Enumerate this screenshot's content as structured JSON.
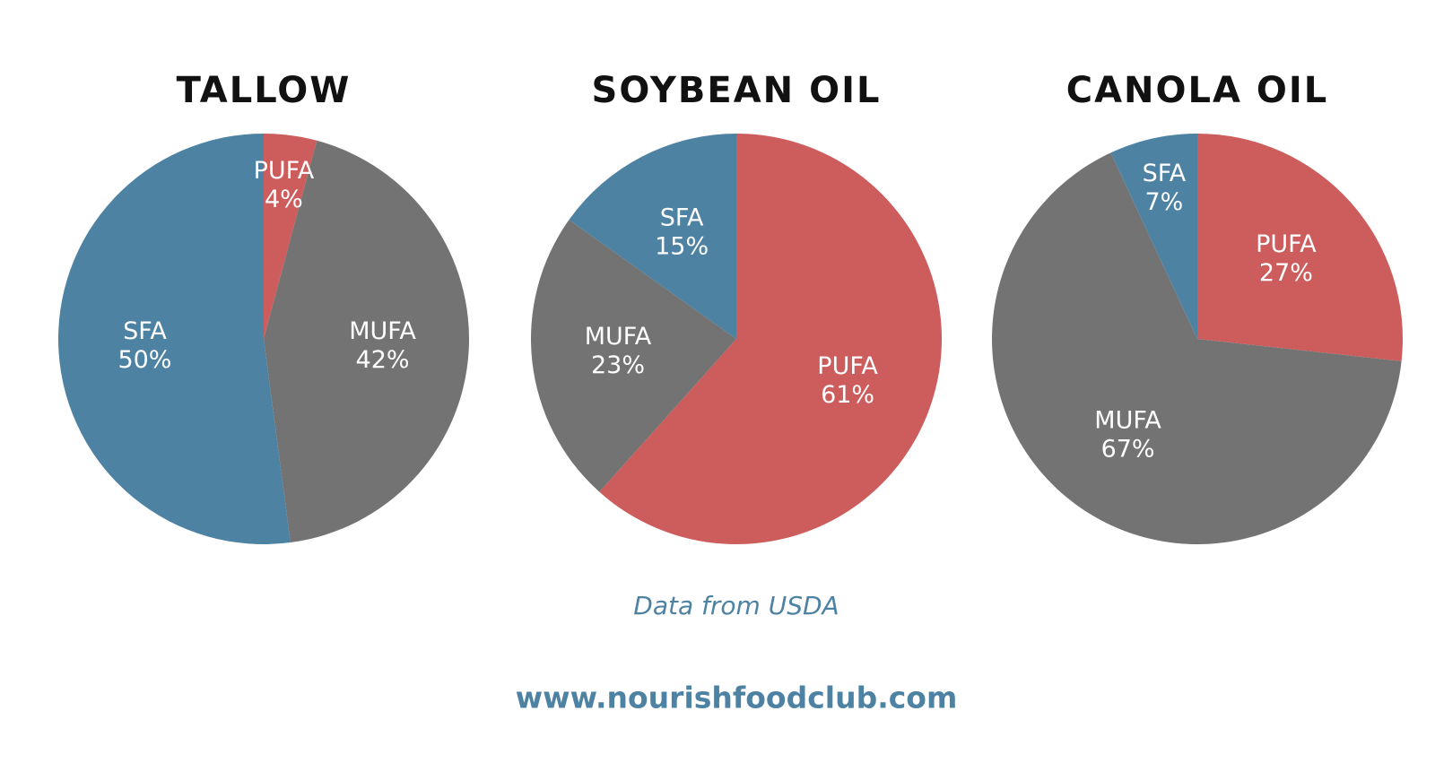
{
  "chart_data": [
    {
      "type": "pie",
      "title": "TALLOW",
      "categories": [
        "PUFA",
        "MUFA",
        "SFA"
      ],
      "values": [
        4,
        42,
        50
      ],
      "value_labels": [
        "4%",
        "42%",
        "50%"
      ],
      "colors": [
        "#cd5c5c",
        "#737373",
        "#4d82a3"
      ]
    },
    {
      "type": "pie",
      "title": "SOYBEAN OIL",
      "categories": [
        "PUFA",
        "MUFA",
        "SFA"
      ],
      "values": [
        61,
        23,
        15
      ],
      "value_labels": [
        "61%",
        "23%",
        "15%"
      ],
      "colors": [
        "#cd5c5c",
        "#737373",
        "#4d82a3"
      ]
    },
    {
      "type": "pie",
      "title": "CANOLA OIL",
      "categories": [
        "PUFA",
        "MUFA",
        "SFA"
      ],
      "values": [
        27,
        67,
        7
      ],
      "value_labels": [
        "27%",
        "67%",
        "7%"
      ],
      "colors": [
        "#cd5c5c",
        "#737373",
        "#4d82a3"
      ]
    }
  ],
  "source": "Data from USDA",
  "website": "www.nourishfoodclub.com"
}
